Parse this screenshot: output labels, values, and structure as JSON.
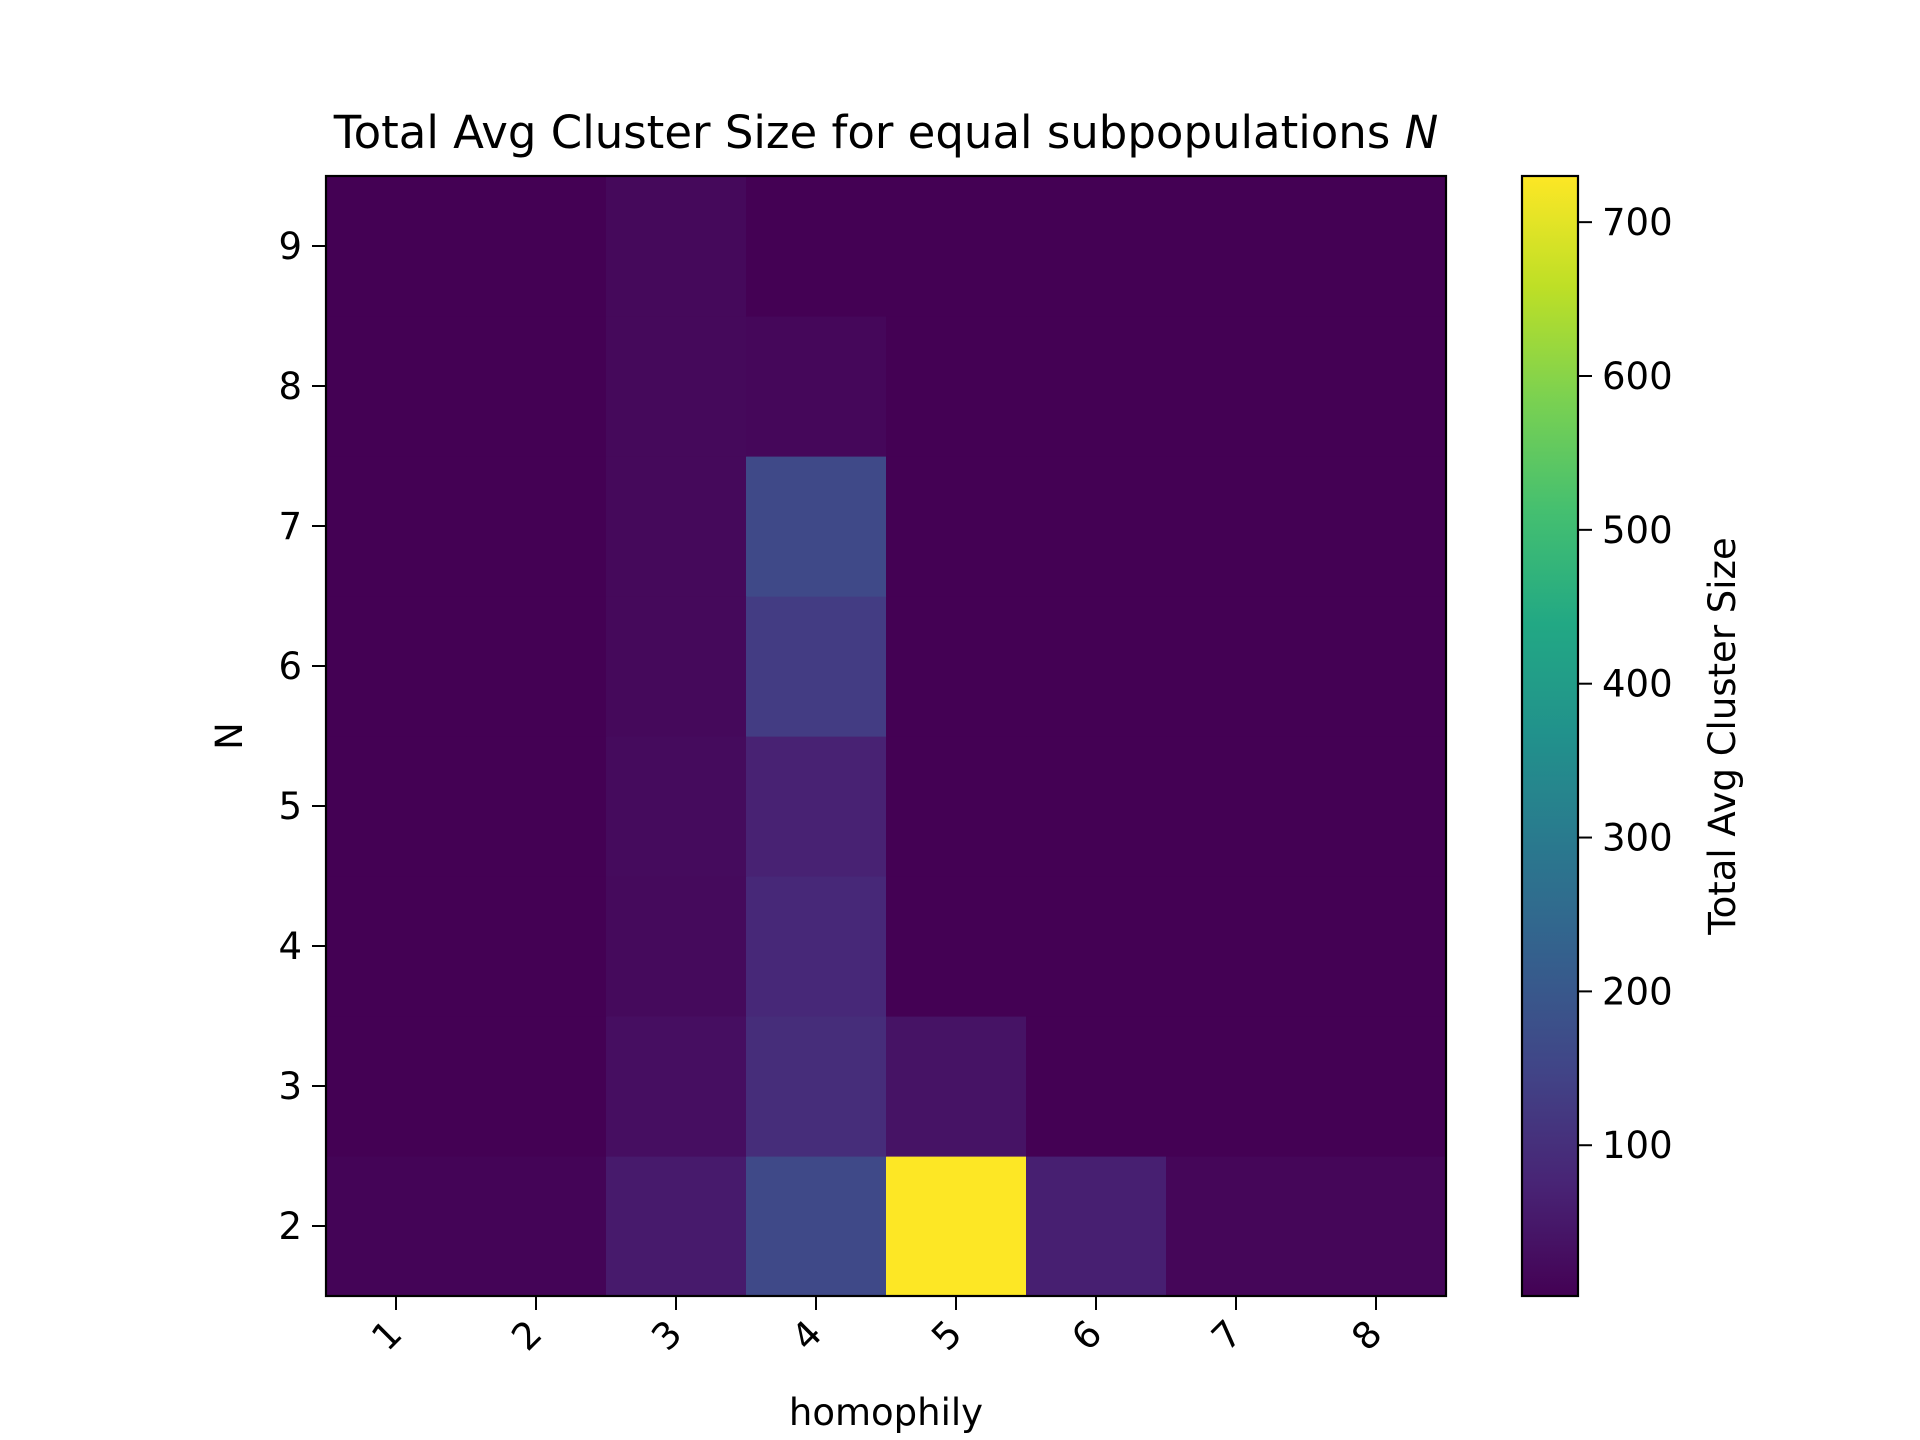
{
  "chart_data": {
    "type": "heatmap",
    "title": "Total Avg Cluster Size for equal subpopulations",
    "title_symbol": "N",
    "xlabel": "homophily",
    "ylabel": "N",
    "x_categories": [
      "1",
      "2",
      "3",
      "4",
      "5",
      "6",
      "7",
      "8"
    ],
    "y_categories": [
      "2",
      "3",
      "4",
      "5",
      "6",
      "7",
      "8",
      "9"
    ],
    "values": [
      [
        8,
        8,
        55,
        160,
        730,
        65,
        12,
        12
      ],
      [
        2,
        2,
        30,
        95,
        40,
        2,
        2,
        2
      ],
      [
        2,
        2,
        20,
        85,
        2,
        2,
        2,
        2
      ],
      [
        2,
        2,
        22,
        70,
        2,
        2,
        2,
        2
      ],
      [
        2,
        2,
        18,
        130,
        2,
        2,
        2,
        2
      ],
      [
        2,
        2,
        18,
        160,
        2,
        2,
        2,
        2
      ],
      [
        2,
        2,
        18,
        15,
        2,
        2,
        2,
        2
      ],
      [
        2,
        2,
        18,
        2,
        2,
        2,
        2,
        2
      ]
    ],
    "colorbar": {
      "label": "Total Avg Cluster Size",
      "ticks": [
        100,
        200,
        300,
        400,
        500,
        600,
        700
      ],
      "range": [
        2,
        730
      ],
      "colormap": "viridis"
    }
  }
}
